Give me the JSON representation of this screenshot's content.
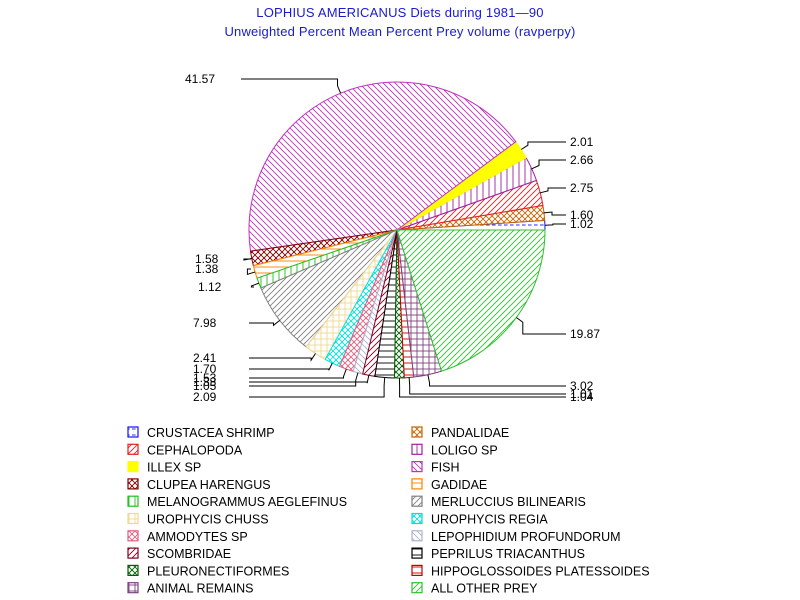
{
  "chart_data": {
    "type": "pie",
    "title": "LOPHIUS AMERICANUS Diets during 1981—90",
    "subtitle": "Unweighted Percent Mean Percent Prey  volume (ravperpy)",
    "slices": [
      {
        "name": "CRUSTACEA SHRIMP",
        "value": 1.02,
        "label": "1.02",
        "color": "#1010ff",
        "pattern": "dash"
      },
      {
        "name": "PANDALIDAE",
        "value": 1.6,
        "label": "1.60",
        "color": "#c86400",
        "pattern": "cross"
      },
      {
        "name": "CEPHALOPODA",
        "value": 2.75,
        "label": "2.75",
        "color": "#e02020",
        "pattern": "fwd"
      },
      {
        "name": "LOLIGO SP",
        "value": 2.66,
        "label": "2.66",
        "color": "#a020a0",
        "pattern": "vert"
      },
      {
        "name": "ILLEX SP",
        "value": 2.01,
        "label": "2.01",
        "color": "#ffff00",
        "pattern": "solid"
      },
      {
        "name": "FISH",
        "value": 41.57,
        "label": "41.57",
        "color": "#c030c0",
        "pattern": "back"
      },
      {
        "name": "CLUPEA HARENGUS",
        "value": 1.58,
        "label": "1.58",
        "color": "#800000",
        "pattern": "cross"
      },
      {
        "name": "GADIDAE",
        "value": 1.38,
        "label": "1.38",
        "color": "#ff8000",
        "pattern": "horiz"
      },
      {
        "name": "MELANOGRAMMUS AEGLEFINUS",
        "value": 1.12,
        "label": "1.12",
        "color": "#20c020",
        "pattern": "vert"
      },
      {
        "name": "MERLUCCIUS BILINEARIS",
        "value": 7.98,
        "label": "7.98",
        "color": "#808080",
        "pattern": "fwd"
      },
      {
        "name": "UROPHYCIS CHUSS",
        "value": 2.41,
        "label": "2.41",
        "color": "#f0d890",
        "pattern": "grid"
      },
      {
        "name": "UROPHYCIS REGIA",
        "value": 1.7,
        "label": "1.70",
        "color": "#00e0e0",
        "pattern": "cross"
      },
      {
        "name": "AMMODYTES SP",
        "value": 1.53,
        "label": "1.53",
        "color": "#e06080",
        "pattern": "cross"
      },
      {
        "name": "LEPOPHIDIUM PROFUNDORUM",
        "value": 1.05,
        "label": "1.05",
        "color": "#b0b0d0",
        "pattern": "back"
      },
      {
        "name": "SCOMBRIDAE",
        "value": 1.33,
        "label": "1.33",
        "color": "#800020",
        "pattern": "fwd"
      },
      {
        "name": "PEPRILUS TRIACANTHUS",
        "value": 2.09,
        "label": "2.09",
        "color": "#000000",
        "pattern": "horiz"
      },
      {
        "name": "PLEURONECTIFORMES",
        "value": 1.04,
        "label": "1.04",
        "color": "#006000",
        "pattern": "cross"
      },
      {
        "name": "HIPPOGLOSSOIDES PLATESSOIDES",
        "value": 1.01,
        "label": "1.01",
        "color": "#c00000",
        "pattern": "horiz"
      },
      {
        "name": "ANIMAL REMAINS",
        "value": 3.02,
        "label": "3.02",
        "color": "#804080",
        "pattern": "grid"
      },
      {
        "name": "ALL OTHER PREY",
        "value": 19.87,
        "label": "19.87",
        "color": "#30c030",
        "pattern": "fwd"
      }
    ],
    "labels_outside": true,
    "legend_position": "bottom"
  }
}
